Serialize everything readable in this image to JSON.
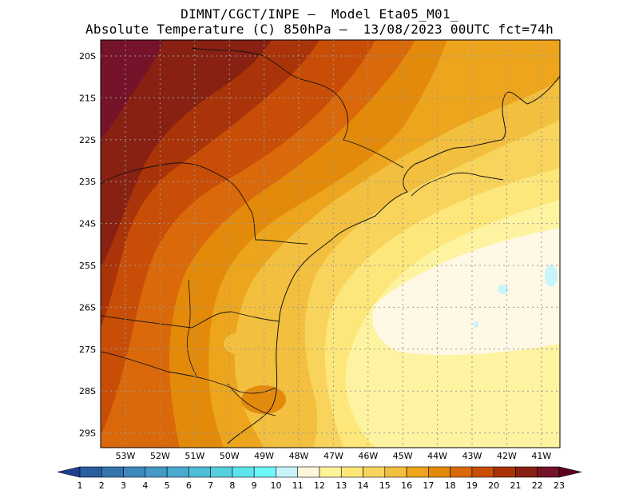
{
  "header": {
    "line1": "DIMNT/CGCT/INPE –  Model Eta05_M01_",
    "line2": "Absolute Temperature (C) 850hPa –  13/08/2023 00UTC fct=74h"
  },
  "map": {
    "lat_ticks": [
      "20S",
      "21S",
      "22S",
      "23S",
      "24S",
      "25S",
      "26S",
      "27S",
      "28S",
      "29S"
    ],
    "lon_ticks": [
      "53W",
      "52W",
      "51W",
      "50W",
      "49W",
      "48W",
      "47W",
      "46W",
      "45W",
      "44W",
      "43W",
      "42W",
      "41W"
    ],
    "grid": true
  },
  "colorbar": {
    "levels": [
      "1",
      "2",
      "3",
      "4",
      "5",
      "6",
      "7",
      "8",
      "9",
      "10",
      "11",
      "12",
      "13",
      "14",
      "15",
      "16",
      "17",
      "18",
      "19",
      "20",
      "21",
      "22",
      "23"
    ],
    "colors": [
      "#1f3f8f",
      "#2b5e9e",
      "#3574ae",
      "#3d88bd",
      "#4499c7",
      "#4aa9cf",
      "#4fbcd8",
      "#55d0e2",
      "#5ce3ec",
      "#6ef6f8",
      "#c8f4fb",
      "#fff5dc",
      "#fff39a",
      "#fde67a",
      "#f8d45c",
      "#f2bf3e",
      "#eca51c",
      "#e48a0b",
      "#d9690a",
      "#c84e07",
      "#a93409",
      "#882112",
      "#74132a",
      "#5d0020"
    ]
  }
}
